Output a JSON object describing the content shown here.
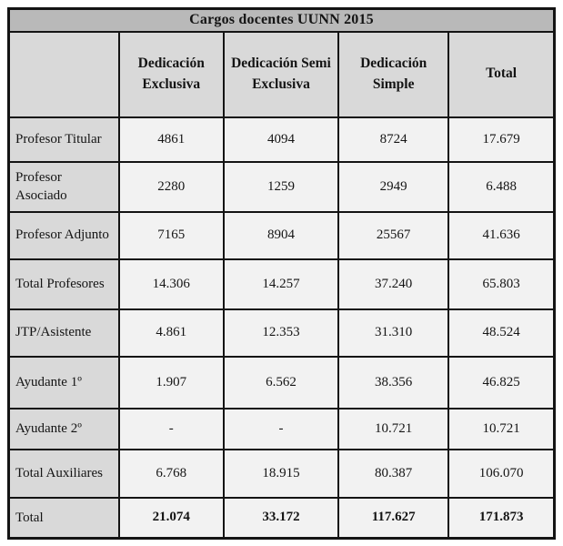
{
  "chart_data": {
    "type": "table",
    "title": "Cargos docentes UUNN 2015",
    "columns": [
      "",
      "Dedicación Exclusiva",
      "Dedicación Semi Exclusiva",
      "Dedicación Simple",
      "Total"
    ],
    "rows": [
      {
        "label": "Profesor Titular",
        "values": [
          "4861",
          "4094",
          "8724",
          "17.679"
        ]
      },
      {
        "label": "Profesor Asociado",
        "values": [
          "2280",
          "1259",
          "2949",
          "6.488"
        ]
      },
      {
        "label": "Profesor Adjunto",
        "values": [
          "7165",
          "8904",
          "25567",
          "41.636"
        ]
      },
      {
        "label": "Total Profesores",
        "values": [
          "14.306",
          "14.257",
          "37.240",
          "65.803"
        ]
      },
      {
        "label": "JTP/Asistente",
        "values": [
          "4.861",
          "12.353",
          "31.310",
          "48.524"
        ]
      },
      {
        "label": "Ayudante 1º",
        "values": [
          "1.907",
          "6.562",
          "38.356",
          "46.825"
        ]
      },
      {
        "label": "Ayudante 2º",
        "values": [
          "-",
          "-",
          "10.721",
          "10.721"
        ]
      },
      {
        "label": "Total Auxiliares",
        "values": [
          "6.768",
          "18.915",
          "80.387",
          "106.070"
        ]
      },
      {
        "label": "Total",
        "values": [
          "21.074",
          "33.172",
          "117.627",
          "171.873"
        ],
        "bold": true
      }
    ]
  },
  "colors": {
    "title_bg": "#b9b9b9",
    "header_bg": "#d9d9d9",
    "label_bg": "#d9d9d9",
    "cell_bg": "#f2f2f2",
    "border": "#141414"
  }
}
